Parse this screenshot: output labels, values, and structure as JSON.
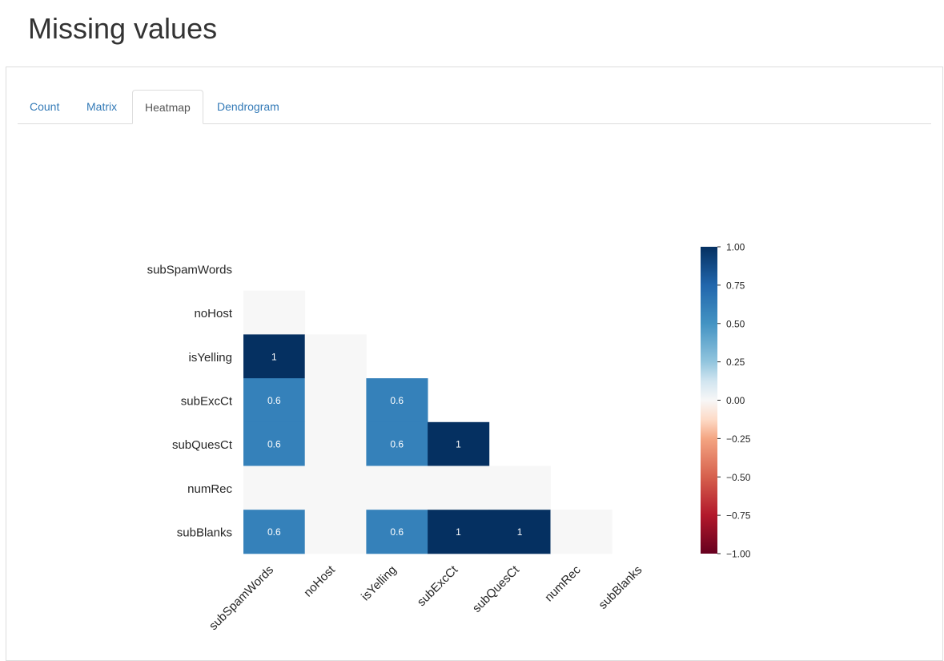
{
  "page": {
    "title": "Missing values"
  },
  "tabs": [
    {
      "label": "Count",
      "active": false
    },
    {
      "label": "Matrix",
      "active": false
    },
    {
      "label": "Heatmap",
      "active": true
    },
    {
      "label": "Dendrogram",
      "active": false
    }
  ],
  "chart_data": {
    "type": "heatmap",
    "title": "",
    "mask": "upper-triangle-and-diagonal",
    "variables": [
      "subSpamWords",
      "noHost",
      "isYelling",
      "subExcCt",
      "subQuesCt",
      "numRec",
      "subBlanks"
    ],
    "matrix": [
      [
        null,
        null,
        null,
        null,
        null,
        null,
        null
      ],
      [
        0.0,
        null,
        null,
        null,
        null,
        null,
        null
      ],
      [
        1.0,
        0.0,
        null,
        null,
        null,
        null,
        null
      ],
      [
        0.6,
        0.0,
        0.6,
        null,
        null,
        null,
        null
      ],
      [
        0.6,
        0.0,
        0.6,
        1.0,
        null,
        null,
        null
      ],
      [
        0.0,
        0.0,
        0.0,
        0.0,
        0.0,
        null,
        null
      ],
      [
        0.6,
        0.0,
        0.6,
        1.0,
        1.0,
        0.0,
        null
      ]
    ],
    "annotations": [
      [
        null,
        null,
        null,
        null,
        null,
        null,
        null
      ],
      [
        null,
        null,
        null,
        null,
        null,
        null,
        null
      ],
      [
        "1",
        null,
        null,
        null,
        null,
        null,
        null
      ],
      [
        "0.6",
        null,
        "0.6",
        null,
        null,
        null,
        null
      ],
      [
        "0.6",
        null,
        "0.6",
        "1",
        null,
        null,
        null
      ],
      [
        null,
        null,
        null,
        null,
        null,
        null,
        null
      ],
      [
        "0.6",
        null,
        "0.6",
        "1",
        "1",
        null,
        null
      ]
    ],
    "colorscale": "RdBu",
    "vmin": -1.0,
    "vmax": 1.0,
    "colorbar_ticks": [
      "1.00",
      "0.75",
      "0.50",
      "0.25",
      "0.00",
      "−0.25",
      "−0.50",
      "−0.75",
      "−1.00"
    ],
    "colorbar_values": [
      1.0,
      0.75,
      0.5,
      0.25,
      0.0,
      -0.25,
      -0.5,
      -0.75,
      -1.0
    ]
  }
}
